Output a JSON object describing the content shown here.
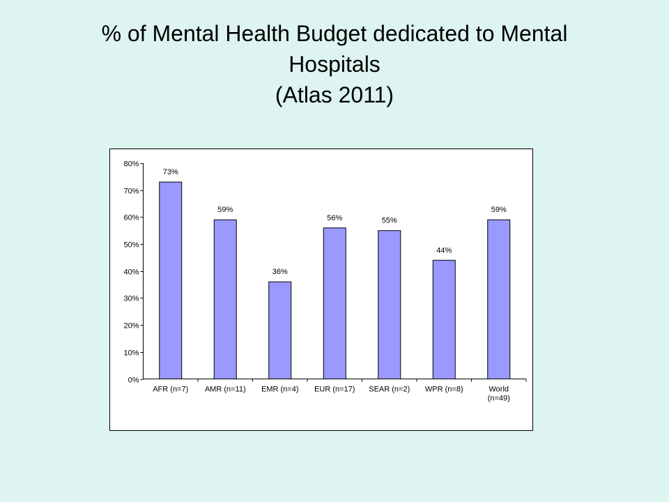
{
  "slide": {
    "title_lines": [
      "% of Mental Health Budget dedicated to Mental",
      "Hospitals",
      "(Atlas 2011)"
    ],
    "background_color": "#DDF4F0"
  },
  "chart_data": {
    "type": "bar",
    "title": "",
    "xlabel": "",
    "ylabel": "",
    "ylim": [
      0,
      80
    ],
    "y_ticks": [
      0,
      10,
      20,
      30,
      40,
      50,
      60,
      70,
      80
    ],
    "y_tick_labels": [
      "0%",
      "10%",
      "20%",
      "30%",
      "40%",
      "50%",
      "60%",
      "70%",
      "80%"
    ],
    "categories": [
      [
        "AFR (n=7)"
      ],
      [
        "AMR (n=11)"
      ],
      [
        "EMR (n=4)"
      ],
      [
        "EUR (n=17)"
      ],
      [
        "SEAR (n=2)"
      ],
      [
        "WPR (n=8)"
      ],
      [
        "World",
        "(n=49)"
      ]
    ],
    "values": [
      73,
      59,
      36,
      56,
      55,
      44,
      59
    ],
    "data_labels": [
      "73%",
      "59%",
      "36%",
      "56%",
      "55%",
      "44%",
      "59%"
    ],
    "bar_color": "#9999FF",
    "grid": false,
    "legend": "none"
  }
}
